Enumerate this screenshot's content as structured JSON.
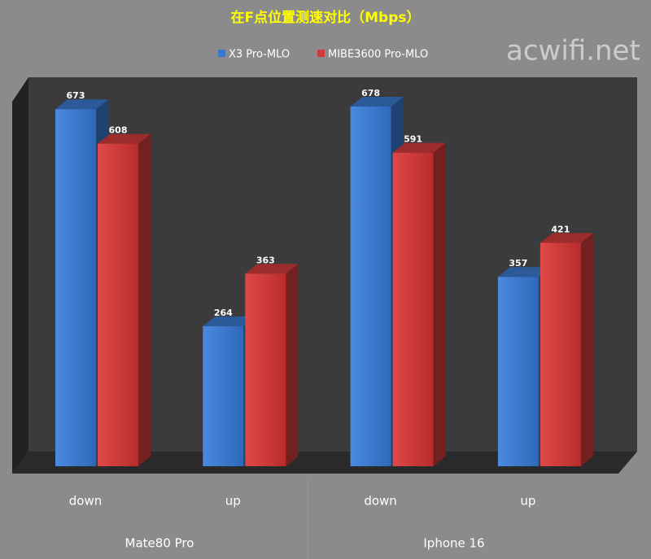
{
  "chart_data": {
    "type": "bar3d",
    "title": "在F点位置测速对比（Mbps）",
    "watermark": "acwifi.net",
    "categories": [
      "down",
      "up",
      "down",
      "up"
    ],
    "groups": [
      "Mate80 Pro",
      "Iphone 16"
    ],
    "series": [
      {
        "name": "X3 Pro-MLO",
        "color": "#3a78cc",
        "values": [
          673,
          264,
          678,
          357
        ]
      },
      {
        "name": "MIBE3600 Pro-MLO",
        "color": "#d03a3a",
        "values": [
          608,
          363,
          591,
          421
        ]
      }
    ]
  }
}
